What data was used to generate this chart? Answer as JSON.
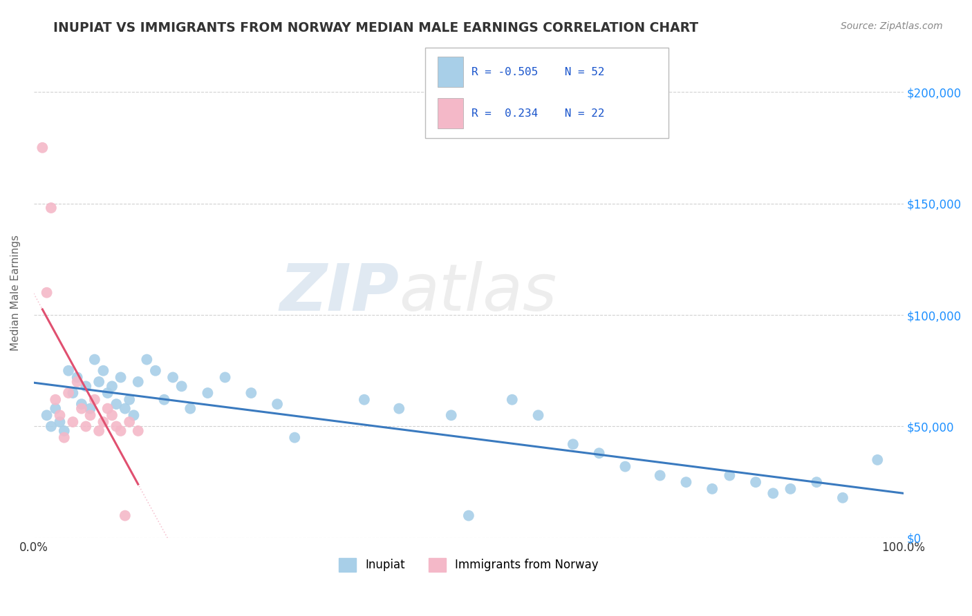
{
  "title": "INUPIAT VS IMMIGRANTS FROM NORWAY MEDIAN MALE EARNINGS CORRELATION CHART",
  "source": "Source: ZipAtlas.com",
  "ylabel": "Median Male Earnings",
  "xlim": [
    0.0,
    1.0
  ],
  "ylim": [
    0,
    220000
  ],
  "yticks": [
    0,
    50000,
    100000,
    150000,
    200000
  ],
  "ytick_labels": [
    "",
    "$50,000",
    "$100,000",
    "$150,000",
    "$200,000"
  ],
  "right_ytick_labels": [
    "$0",
    "$50,000",
    "$100,000",
    "$150,000",
    "$200,000"
  ],
  "xticks": [
    0.0,
    0.1,
    0.2,
    0.3,
    0.4,
    0.5,
    0.6,
    0.7,
    0.8,
    0.9,
    1.0
  ],
  "xtick_labels": [
    "0.0%",
    "",
    "",
    "",
    "",
    "",
    "",
    "",
    "",
    "",
    "100.0%"
  ],
  "watermark_zip": "ZIP",
  "watermark_atlas": "atlas",
  "blue_color": "#a8cfe8",
  "pink_color": "#f4b8c8",
  "blue_line_color": "#3a7abf",
  "pink_line_color": "#e05070",
  "pink_dash_color": "#f4b8c8",
  "title_color": "#333333",
  "axis_label_color": "#666666",
  "right_tick_color": "#1e90ff",
  "background_color": "#ffffff",
  "grid_color": "#cccccc",
  "inupiat_x": [
    0.015,
    0.02,
    0.025,
    0.03,
    0.035,
    0.04,
    0.045,
    0.05,
    0.055,
    0.06,
    0.065,
    0.07,
    0.075,
    0.08,
    0.085,
    0.09,
    0.095,
    0.1,
    0.105,
    0.11,
    0.115,
    0.12,
    0.13,
    0.14,
    0.15,
    0.16,
    0.17,
    0.18,
    0.2,
    0.22,
    0.25,
    0.28,
    0.3,
    0.38,
    0.42,
    0.48,
    0.5,
    0.55,
    0.58,
    0.62,
    0.65,
    0.68,
    0.72,
    0.75,
    0.78,
    0.8,
    0.83,
    0.85,
    0.87,
    0.9,
    0.93,
    0.97
  ],
  "inupiat_y": [
    55000,
    50000,
    58000,
    52000,
    48000,
    75000,
    65000,
    72000,
    60000,
    68000,
    58000,
    80000,
    70000,
    75000,
    65000,
    68000,
    60000,
    72000,
    58000,
    62000,
    55000,
    70000,
    80000,
    75000,
    62000,
    72000,
    68000,
    58000,
    65000,
    72000,
    65000,
    60000,
    45000,
    62000,
    58000,
    55000,
    10000,
    62000,
    55000,
    42000,
    38000,
    32000,
    28000,
    25000,
    22000,
    28000,
    25000,
    20000,
    22000,
    25000,
    18000,
    35000
  ],
  "norway_x": [
    0.01,
    0.015,
    0.02,
    0.025,
    0.03,
    0.035,
    0.04,
    0.045,
    0.05,
    0.055,
    0.06,
    0.065,
    0.07,
    0.075,
    0.08,
    0.085,
    0.09,
    0.095,
    0.1,
    0.105,
    0.11,
    0.12
  ],
  "norway_y": [
    175000,
    110000,
    148000,
    62000,
    55000,
    45000,
    65000,
    52000,
    70000,
    58000,
    50000,
    55000,
    62000,
    48000,
    52000,
    58000,
    55000,
    50000,
    48000,
    10000,
    52000,
    48000
  ]
}
